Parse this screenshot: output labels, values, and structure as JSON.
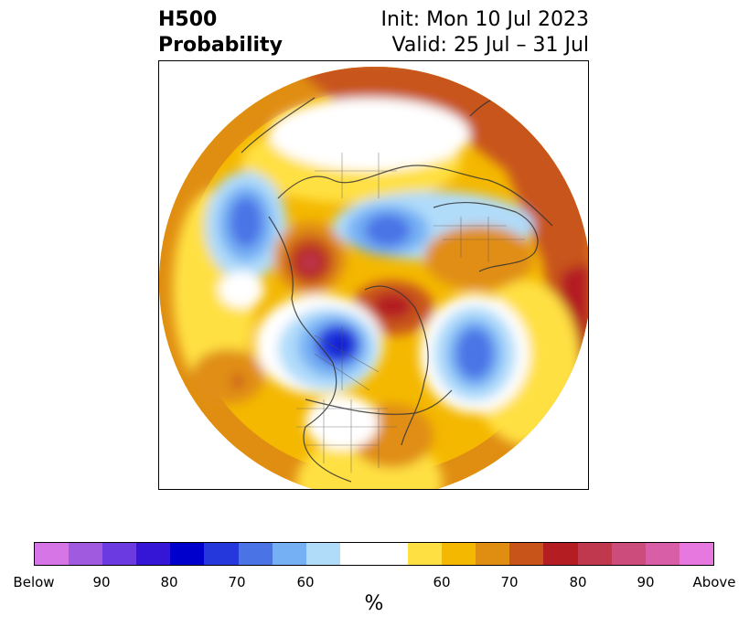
{
  "title": {
    "line1": "H500",
    "line2": "Probability"
  },
  "subtitle": {
    "init": "Init: Mon 10 Jul 2023",
    "valid": "Valid: 25 Jul – 31 Jul"
  },
  "colorbar": {
    "unit": "%",
    "colors": [
      "#d676e6",
      "#a05ae0",
      "#6b3ae0",
      "#3516d6",
      "#0000cc",
      "#2438dc",
      "#4a74e6",
      "#76b0f4",
      "#b0dcfa",
      "#ffffff",
      "#ffffff",
      "#ffe042",
      "#f4b800",
      "#e08e12",
      "#c8541a",
      "#b41e22",
      "#c0384e",
      "#cc4c7c",
      "#d85ea8",
      "#e678e0"
    ],
    "labels": [
      "Below",
      "90",
      "80",
      "70",
      "60",
      "60",
      "70",
      "80",
      "90",
      "Above"
    ]
  }
}
